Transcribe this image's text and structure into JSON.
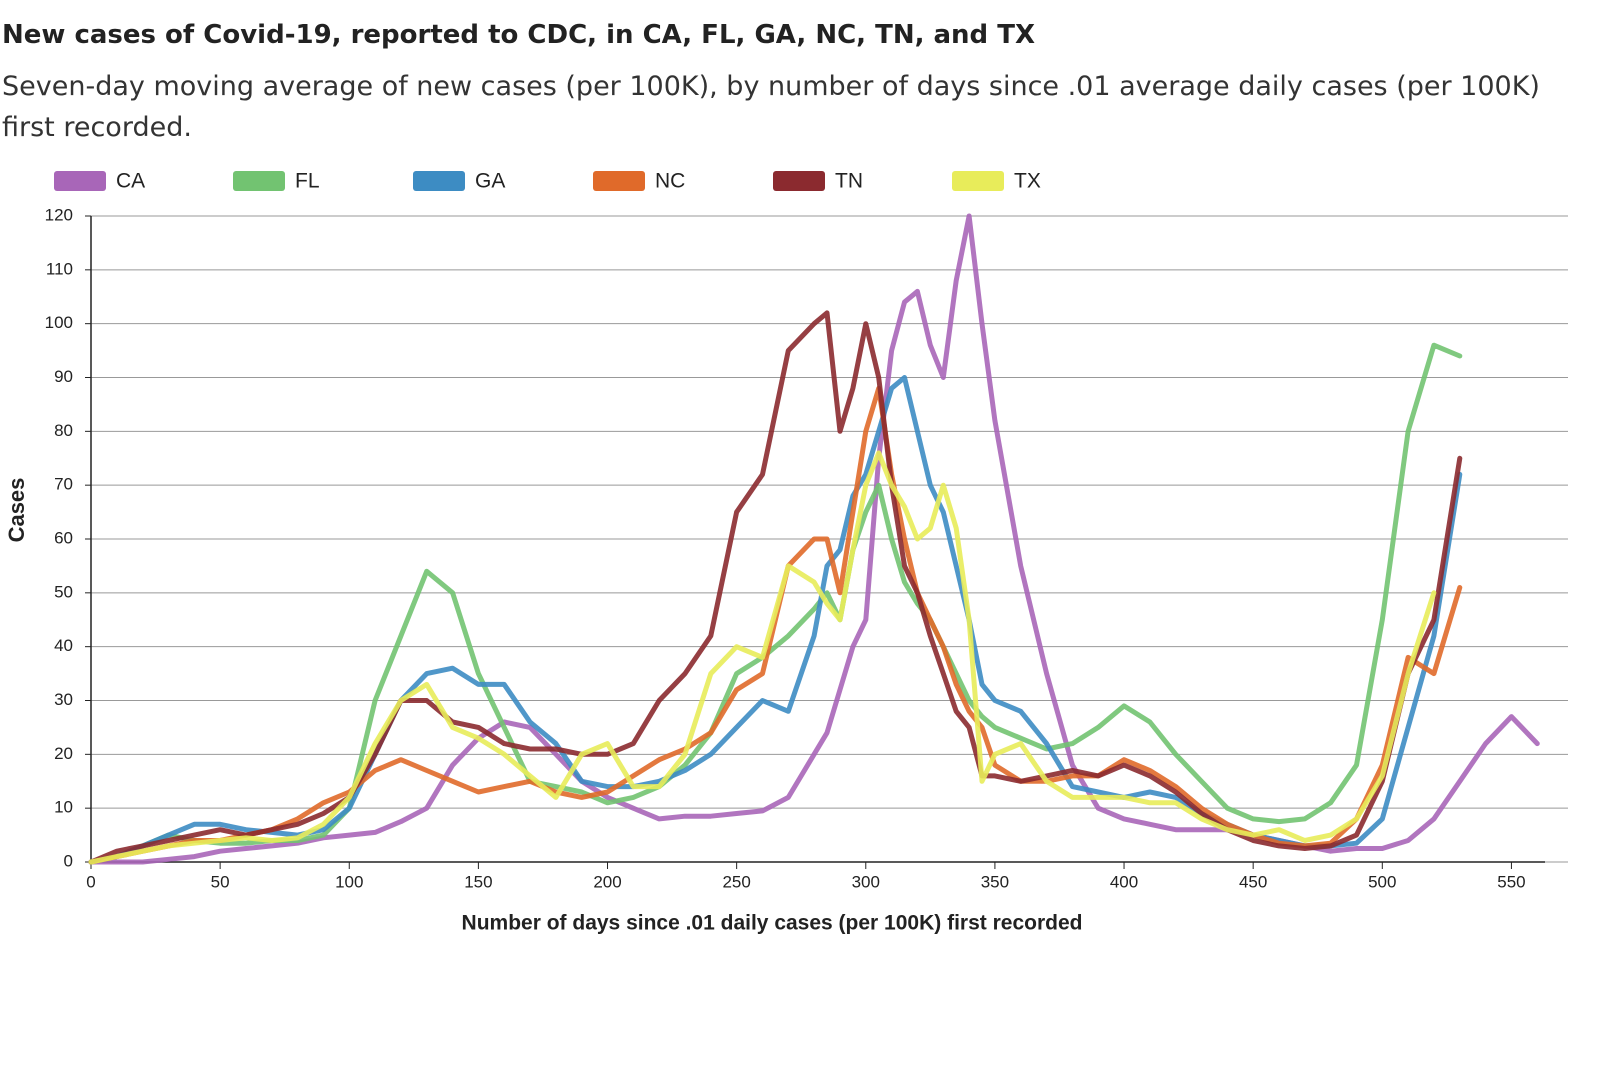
{
  "chart_data": {
    "type": "line",
    "title": "New cases of Covid-19, reported to CDC, in CA, FL, GA, NC, TN, and TX",
    "subtitle": "Seven-day moving average of new cases (per 100K), by number of days since .01 average daily cases (per 100K) first recorded.",
    "x_label": "Number of days since .01 daily cases (per 100K) first recorded",
    "y_label": "Cases",
    "x": [
      0,
      10,
      20,
      30,
      40,
      50,
      60,
      70,
      80,
      90,
      100,
      110,
      120,
      130,
      140,
      150,
      160,
      170,
      180,
      190,
      200,
      210,
      220,
      230,
      240,
      250,
      260,
      270,
      280,
      285,
      290,
      295,
      300,
      305,
      310,
      315,
      320,
      325,
      330,
      335,
      340,
      345,
      350,
      360,
      370,
      380,
      390,
      400,
      410,
      420,
      430,
      440,
      450,
      460,
      470,
      480,
      490,
      500,
      510,
      520,
      530,
      540,
      550,
      560
    ],
    "series": [
      {
        "name": "CA",
        "color": "#a866b8",
        "values": [
          0,
          0,
          0,
          0.5,
          1,
          2,
          2.5,
          3,
          3.5,
          4.5,
          5,
          5.5,
          7.5,
          10,
          18,
          23,
          26,
          25,
          20,
          15,
          12,
          10,
          8,
          8.5,
          8.5,
          9,
          9.5,
          12,
          20,
          24,
          32,
          40,
          45,
          75,
          95,
          104,
          106,
          96,
          90,
          108,
          120,
          100,
          82,
          55,
          35,
          18,
          10,
          8,
          7,
          6,
          6,
          6,
          5,
          4,
          3,
          2,
          2.5,
          2.5,
          4,
          8,
          15,
          22,
          27,
          22
        ]
      },
      {
        "name": "FL",
        "color": "#72c371",
        "values": [
          0,
          1,
          3,
          5,
          4,
          3.5,
          3.5,
          4,
          4,
          5,
          10,
          30,
          42,
          54,
          50,
          35,
          25,
          15,
          14,
          13,
          11,
          12,
          14,
          18,
          24,
          35,
          38,
          42,
          47,
          50,
          45,
          58,
          65,
          70,
          60,
          52,
          48,
          45,
          40,
          35,
          30,
          27,
          25,
          23,
          21,
          22,
          25,
          29,
          26,
          20,
          15,
          10,
          8,
          7.5,
          8,
          11,
          18,
          45,
          80,
          96,
          94,
          null,
          null,
          null
        ]
      },
      {
        "name": "GA",
        "color": "#3d8cc3",
        "values": [
          0,
          1,
          3,
          5,
          7,
          7,
          6,
          5.5,
          5,
          6,
          10,
          20,
          30,
          35,
          36,
          33,
          33,
          26,
          22,
          15,
          14,
          14,
          15,
          17,
          20,
          25,
          30,
          28,
          42,
          55,
          58,
          68,
          72,
          80,
          88,
          90,
          80,
          70,
          65,
          55,
          45,
          33,
          30,
          28,
          22,
          14,
          13,
          12,
          13,
          12,
          9,
          7,
          5,
          4,
          3,
          3,
          3.5,
          8,
          25,
          42,
          72,
          null,
          null,
          null
        ]
      },
      {
        "name": "NC",
        "color": "#e06a2a",
        "values": [
          0,
          1,
          2,
          3,
          4,
          4,
          5,
          6,
          8,
          11,
          13,
          17,
          19,
          17,
          15,
          13,
          14,
          15,
          13,
          12,
          13,
          16,
          19,
          21,
          24,
          32,
          35,
          55,
          60,
          60,
          50,
          65,
          80,
          88,
          72,
          60,
          50,
          45,
          40,
          33,
          28,
          25,
          18,
          15,
          15,
          16,
          16,
          19,
          17,
          14,
          10,
          7,
          5,
          3.5,
          3,
          3.5,
          8,
          18,
          38,
          35,
          51,
          null,
          null,
          null
        ]
      },
      {
        "name": "TN",
        "color": "#8b2a2f",
        "values": [
          0,
          2,
          3,
          4,
          5,
          6,
          5,
          6,
          7,
          9,
          12,
          20,
          30,
          30,
          26,
          25,
          22,
          21,
          21,
          20,
          20,
          22,
          30,
          35,
          42,
          65,
          72,
          95,
          100,
          102,
          80,
          88,
          100,
          90,
          70,
          55,
          50,
          42,
          35,
          28,
          25,
          16,
          16,
          15,
          16,
          17,
          16,
          18,
          16,
          13,
          9,
          6,
          4,
          3,
          2.5,
          3,
          5,
          15,
          35,
          45,
          75,
          null,
          null,
          null
        ]
      },
      {
        "name": "TX",
        "color": "#e8ec5a",
        "values": [
          0,
          1,
          2,
          3,
          3.5,
          4,
          4.5,
          4,
          4.5,
          7,
          12,
          22,
          30,
          33,
          25,
          23,
          20,
          16,
          12,
          20,
          22,
          14,
          14,
          20,
          35,
          40,
          38,
          55,
          52,
          48,
          45,
          58,
          70,
          76,
          70,
          66,
          60,
          62,
          70,
          62,
          45,
          15,
          20,
          22,
          15,
          12,
          12,
          12,
          11,
          11,
          8,
          6,
          5,
          6,
          4,
          5,
          8,
          16,
          35,
          50,
          null,
          null,
          null,
          null
        ]
      }
    ],
    "xlim": [
      0,
      563
    ],
    "ylim": [
      0,
      120
    ],
    "xticks": [
      0,
      50,
      100,
      150,
      200,
      250,
      300,
      350,
      400,
      450,
      500,
      550
    ],
    "yticks": [
      0,
      10,
      20,
      30,
      40,
      50,
      60,
      70,
      80,
      90,
      100,
      110,
      120
    ],
    "grid": true,
    "legend": "top"
  }
}
